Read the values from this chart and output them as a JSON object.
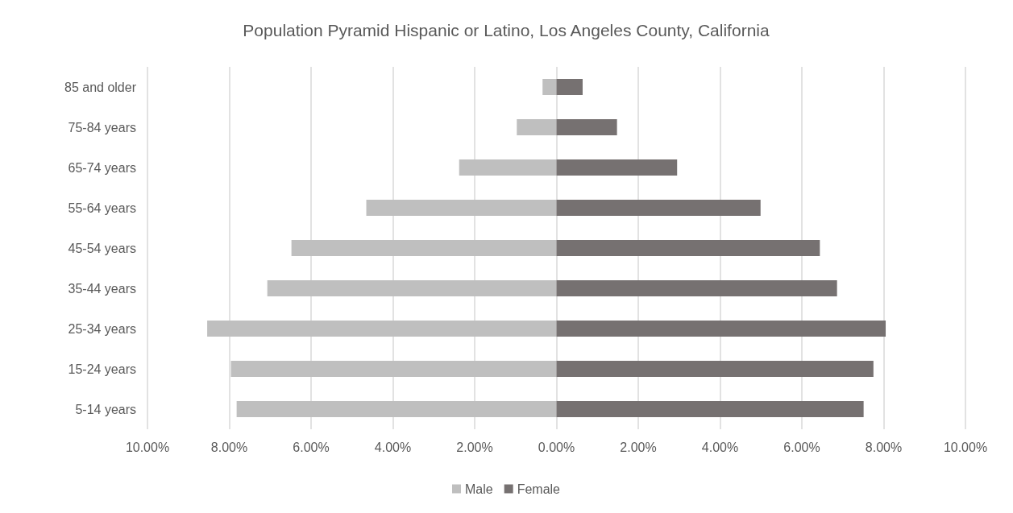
{
  "chart_data": {
    "type": "bar",
    "orientation": "horizontal",
    "stacked": true,
    "title": "Population Pyramid Hispanic or Latino, Los Angeles County, California",
    "categories": [
      "85 and older",
      "75-84 years",
      "65-74 years",
      "55-64 years",
      "45-54 years",
      "35-44 years",
      "25-34 years",
      "15-24 years",
      "5-14 years"
    ],
    "series": [
      {
        "name": "Male",
        "color": "#bfbfbf",
        "values": [
          -0.34,
          -0.97,
          -2.38,
          -4.65,
          -6.48,
          -7.07,
          -8.54,
          -7.96,
          -7.82
        ]
      },
      {
        "name": "Female",
        "color": "#767171",
        "values": [
          0.64,
          1.48,
          2.95,
          4.99,
          6.44,
          6.86,
          8.05,
          7.75,
          7.51
        ]
      }
    ],
    "xlim": [
      -10,
      10
    ],
    "xticks": [
      {
        "value": -10,
        "label": "10.00%"
      },
      {
        "value": -8,
        "label": "8.00%"
      },
      {
        "value": -6,
        "label": "6.00%"
      },
      {
        "value": -4,
        "label": "4.00%"
      },
      {
        "value": -2,
        "label": "2.00%"
      },
      {
        "value": 0,
        "label": "0.00%"
      },
      {
        "value": 2,
        "label": "2.00%"
      },
      {
        "value": 4,
        "label": "4.00%"
      },
      {
        "value": 6,
        "label": "6.00%"
      },
      {
        "value": 8,
        "label": "8.00%"
      },
      {
        "value": 10,
        "label": "10.00%"
      }
    ],
    "grid": "x",
    "legend": "bottom"
  }
}
